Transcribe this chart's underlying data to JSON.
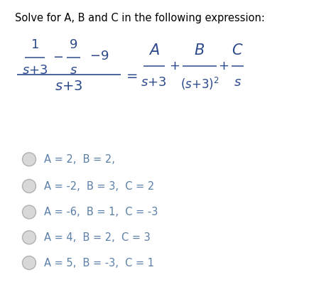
{
  "title": "Solve for A, B and C in the following expression:",
  "title_fontsize": 10.5,
  "bg_color": "#ffffff",
  "text_color": "#000000",
  "option_text_color": "#5a7fa8",
  "options": [
    "A = 2,  B = 2,",
    "A = -2,  B = 3,  C = 2",
    "A = -6,  B = 1,  C = -3",
    "A = 4,  B = 2,  C = 3",
    "A = 5,  B = -3,  C = 1"
  ],
  "option_fontsize": 10.5,
  "eq_color": "#2c4a8c",
  "eq_fontsize": 13,
  "fig_width": 4.66,
  "fig_height": 3.97,
  "fig_dpi": 100
}
